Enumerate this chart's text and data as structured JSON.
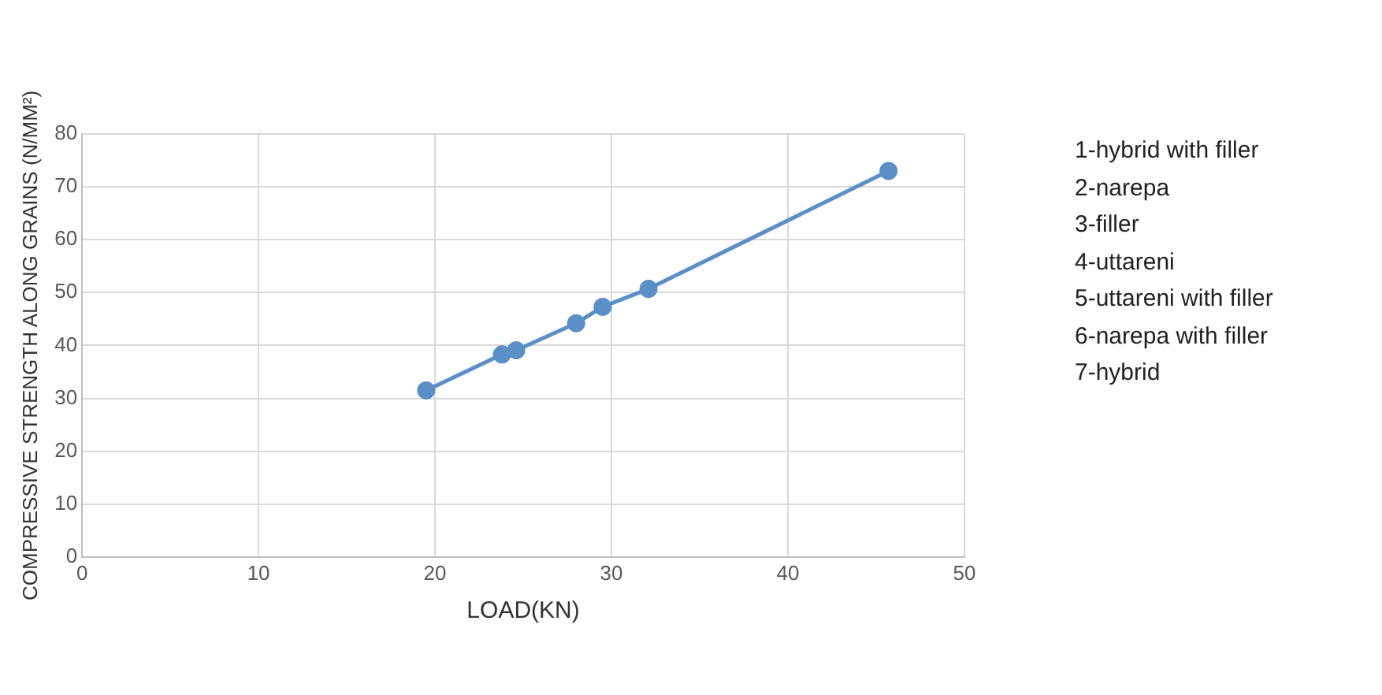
{
  "chart_data": {
    "type": "line",
    "xlabel": "LOAD(KN)",
    "ylabel": "COMPRESSIVE STRENGTH ALONG GRAINS (N/MM²)",
    "x": [
      19.5,
      23.8,
      24.6,
      28.0,
      29.5,
      32.1,
      45.7
    ],
    "series": [
      {
        "color": "#5b8fc7",
        "values": [
          31.5,
          38.3,
          39.1,
          44.2,
          47.3,
          50.7,
          73.0
        ]
      }
    ],
    "xlim": [
      0,
      50
    ],
    "xticks": [
      0,
      10,
      20,
      30,
      40,
      50
    ],
    "ylim": [
      0,
      80
    ],
    "yticks": [
      0,
      10,
      20,
      30,
      40,
      50,
      60,
      70,
      80
    ],
    "grid": true,
    "legend": false,
    "marker": "circle",
    "line_style": "solid",
    "annotations": [
      "1-hybrid with filler",
      "2-narepa",
      "3-filler",
      "4-uttareni",
      "5-uttareni with filler",
      "6-narepa with filler",
      "7-hybrid"
    ]
  }
}
